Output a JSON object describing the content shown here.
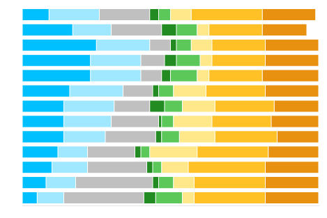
{
  "chart_data": {
    "type": "bar",
    "orientation": "horizontal",
    "stacked": true,
    "categories": [
      null,
      null,
      null,
      null,
      null,
      null,
      null,
      null,
      null,
      null,
      null,
      null,
      null
    ],
    "series": [
      {
        "color": "#00C0FF",
        "values": [
          9,
          17,
          25,
          23,
          23,
          16,
          14,
          14,
          14,
          12,
          10,
          8,
          5
        ]
      },
      {
        "color": "#A0E8FF",
        "values": [
          17,
          13,
          18,
          17,
          17,
          18,
          17,
          16,
          14,
          10,
          12,
          10,
          9
        ]
      },
      {
        "color": "#C0C0C0",
        "values": [
          17,
          17,
          7,
          8,
          7,
          10,
          12,
          16,
          17,
          16,
          20,
          26,
          27
        ]
      },
      {
        "color": "#228B22",
        "values": [
          3,
          5,
          2,
          4,
          3,
          2,
          5,
          1,
          2,
          2,
          2,
          2,
          4
        ]
      },
      {
        "color": "#5DC85A",
        "values": [
          4,
          7,
          5,
          8,
          9,
          5,
          6,
          4,
          6,
          3,
          3,
          5,
          9
        ]
      },
      {
        "color": "#FFE88A",
        "values": [
          7,
          4,
          7,
          4,
          4,
          11,
          11,
          13,
          12,
          16,
          9,
          7,
          4
        ]
      },
      {
        "color": "#FFC125",
        "values": [
          24,
          18,
          18,
          18,
          18,
          20,
          20,
          20,
          21,
          24,
          26,
          24,
          24
        ]
      },
      {
        "color": "#E89010",
        "values": [
          18,
          15,
          18,
          18,
          19,
          18,
          15,
          16,
          14,
          17,
          18,
          18,
          18
        ]
      }
    ],
    "xlim": [
      0,
      100
    ],
    "grid": false,
    "tick_labels": false
  }
}
